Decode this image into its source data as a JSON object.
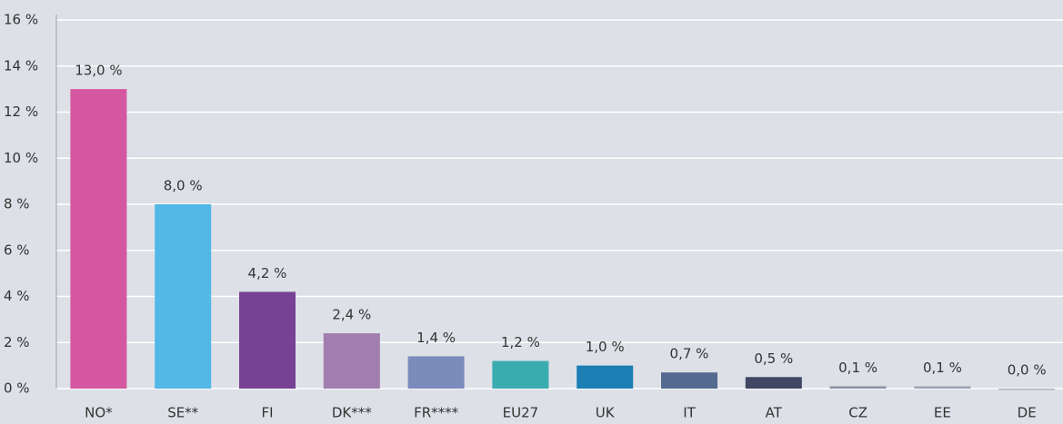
{
  "chart_data": {
    "type": "bar",
    "categories": [
      "NO*",
      "SE**",
      "FI",
      "DK***",
      "FR****",
      "EU27",
      "UK",
      "IT",
      "AT",
      "CZ",
      "EE",
      "DE"
    ],
    "values": [
      13.0,
      8.0,
      4.2,
      2.4,
      1.4,
      1.2,
      1.0,
      0.7,
      0.5,
      0.1,
      0.1,
      0.0
    ],
    "value_labels": [
      "13,0 %",
      "8,0 %",
      "4,2 %",
      "2,4 %",
      "1,4 %",
      "1,2 %",
      "1,0 %",
      "0,7 %",
      "0,5 %",
      "0,1 %",
      "0,1 %",
      "0,0 %"
    ],
    "colors": [
      "#d457a0",
      "#52b8e8",
      "#774194",
      "#a27daf",
      "#7b8bbc",
      "#3aacb0",
      "#1b7fb4",
      "#546a8f",
      "#3f4762",
      "#8a93a5",
      "#9ea5b5",
      "#b0b5c2"
    ],
    "ylim": [
      0,
      16
    ],
    "yticks": [
      {
        "value": 0,
        "label": "0 %"
      },
      {
        "value": 2,
        "label": "2 %"
      },
      {
        "value": 4,
        "label": "4 %"
      },
      {
        "value": 6,
        "label": "6 %"
      },
      {
        "value": 8,
        "label": "8 %"
      },
      {
        "value": 10,
        "label": "10 %"
      },
      {
        "value": 12,
        "label": "12 %"
      },
      {
        "value": 14,
        "label": "14 %"
      },
      {
        "value": 16,
        "label": "16 %"
      }
    ],
    "grid": true
  }
}
